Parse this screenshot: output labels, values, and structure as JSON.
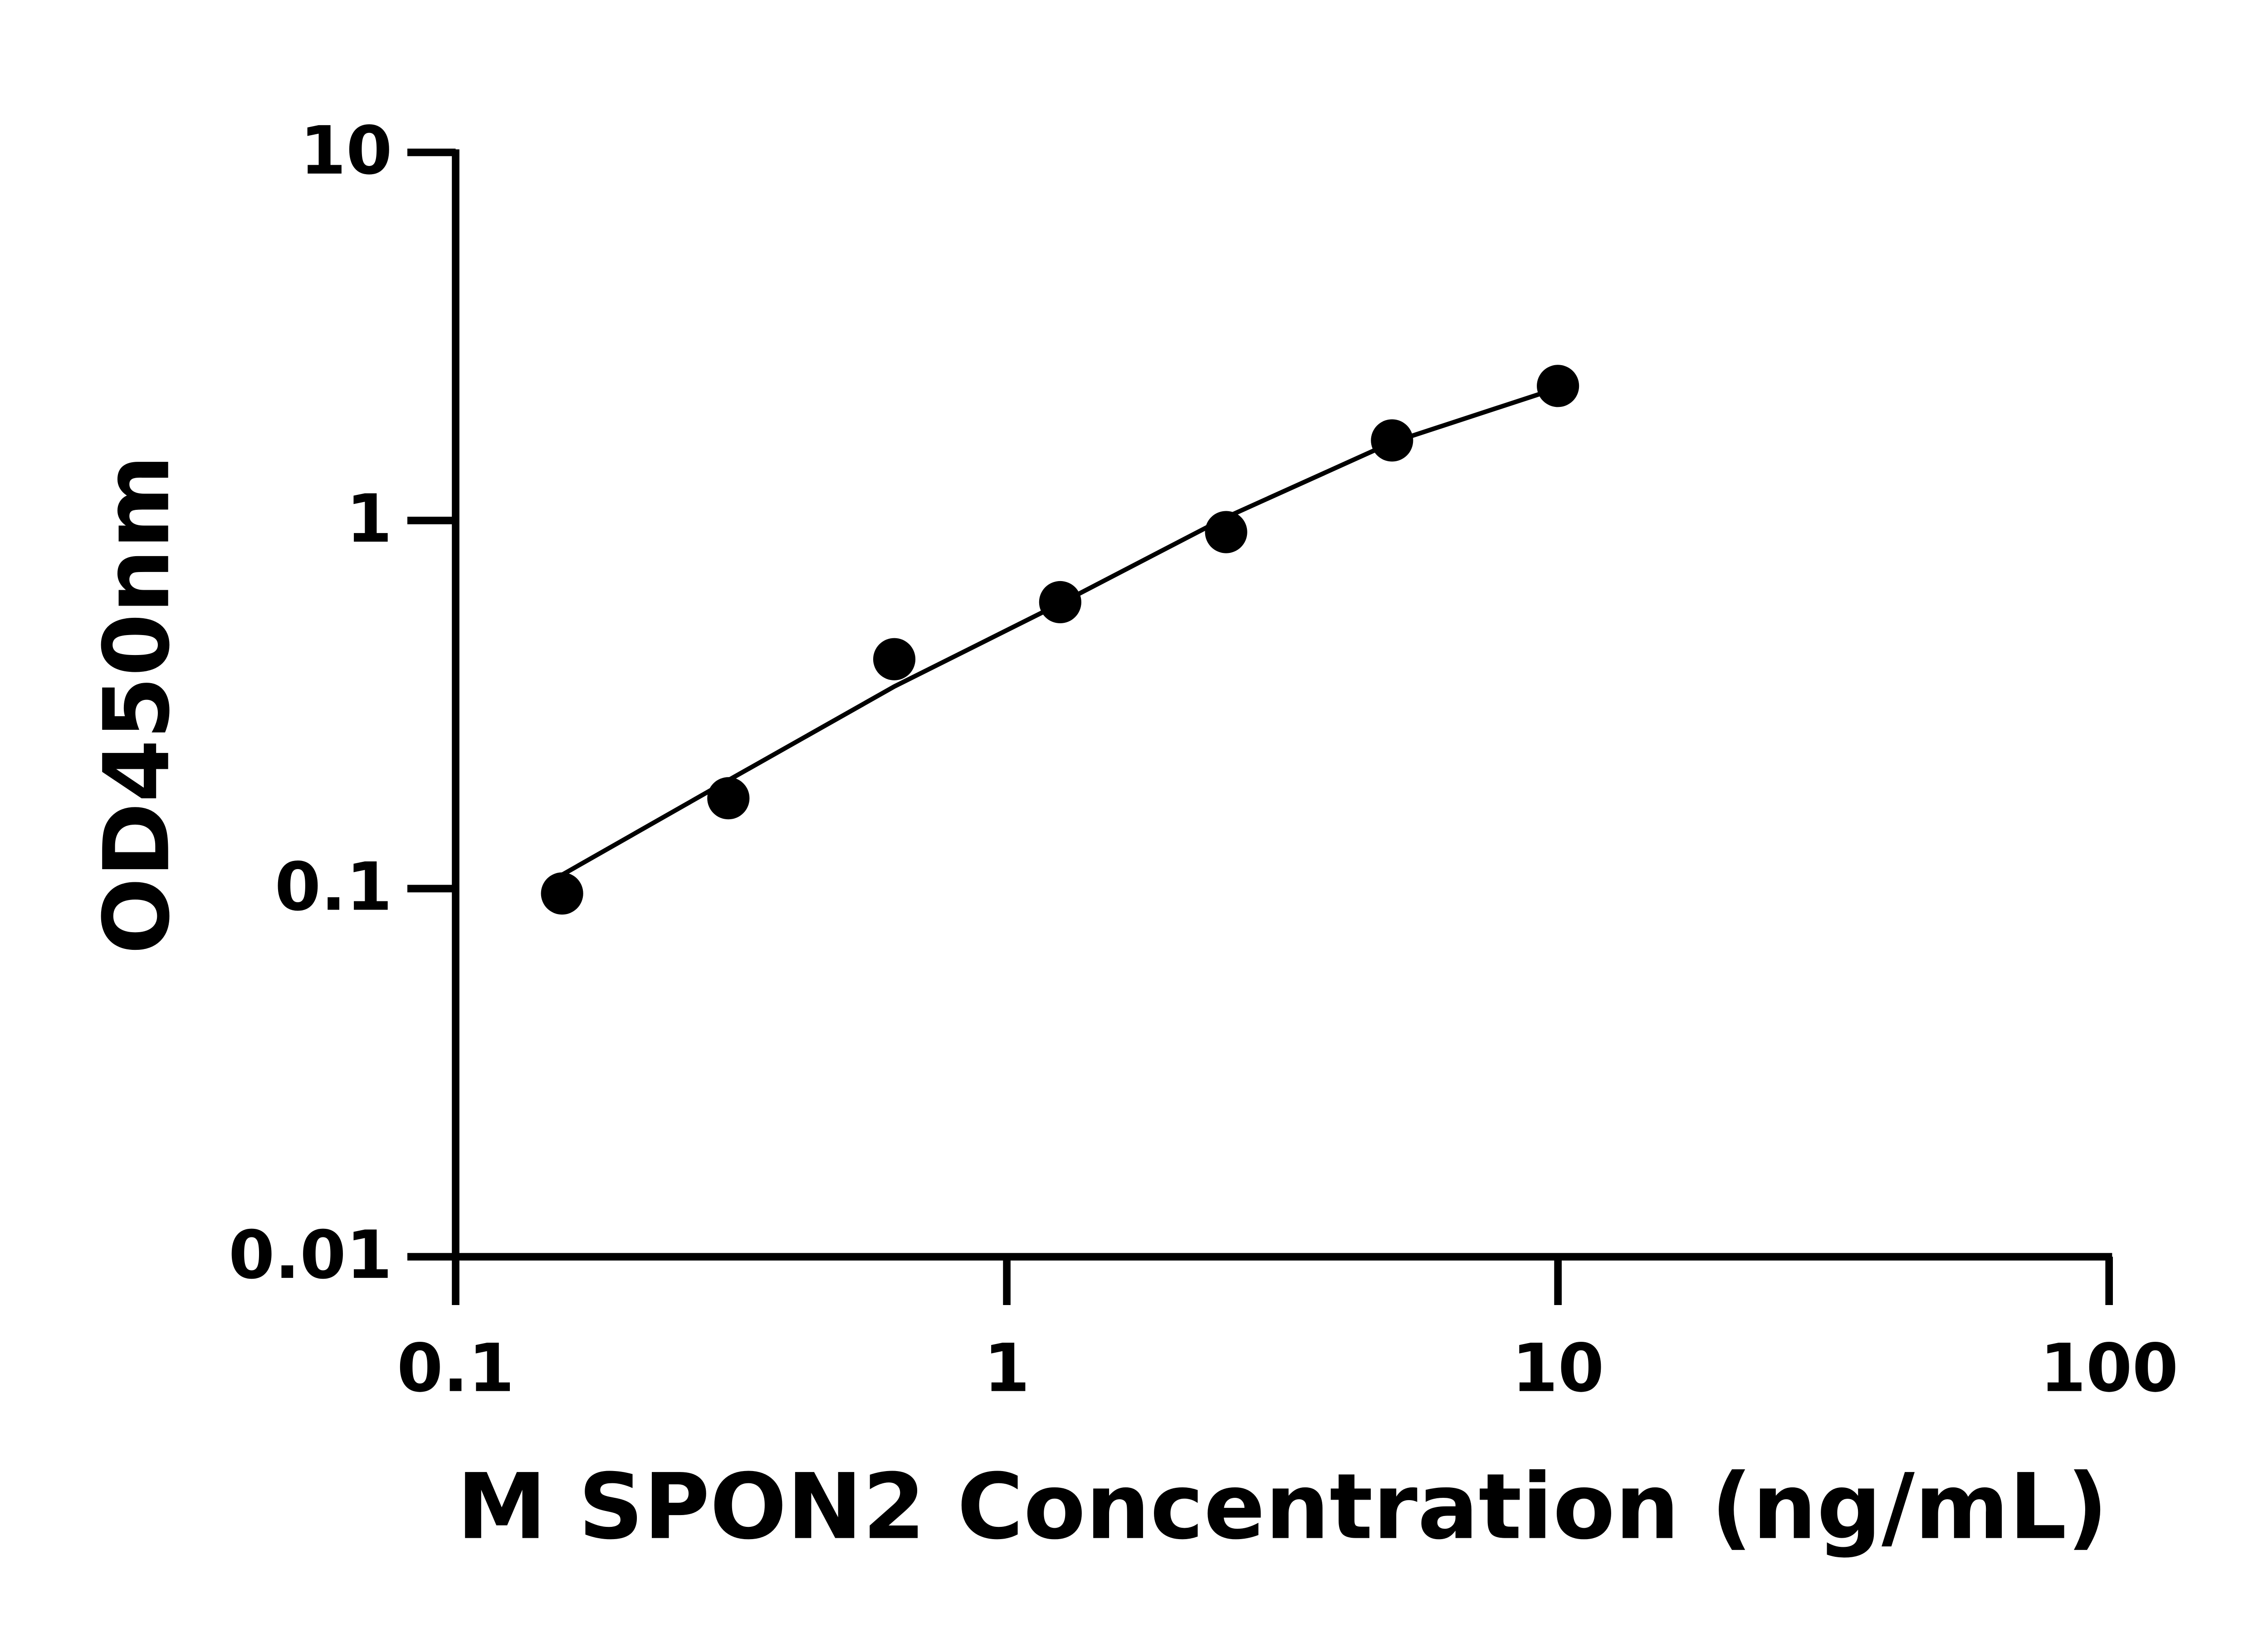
{
  "chart_data": {
    "type": "scatter",
    "x_label": "M SPON2 Concentration (ng/mL)",
    "y_label": "OD450nm",
    "x": [
      0.156,
      0.3125,
      0.625,
      1.25,
      2.5,
      5,
      10
    ],
    "values": [
      0.097,
      0.176,
      0.42,
      0.6,
      0.93,
      1.65,
      2.32
    ],
    "fit_values": [
      0.109,
      0.197,
      0.354,
      0.595,
      1.02,
      1.63,
      2.29
    ],
    "color": "#000000",
    "xlog": true,
    "ylog": true,
    "xlim": [
      0.1,
      100
    ],
    "ylim": [
      0.01,
      10
    ],
    "xticks": [
      0.1,
      1,
      10,
      100
    ],
    "yticks": [
      0.01,
      0.1,
      1,
      10
    ]
  }
}
